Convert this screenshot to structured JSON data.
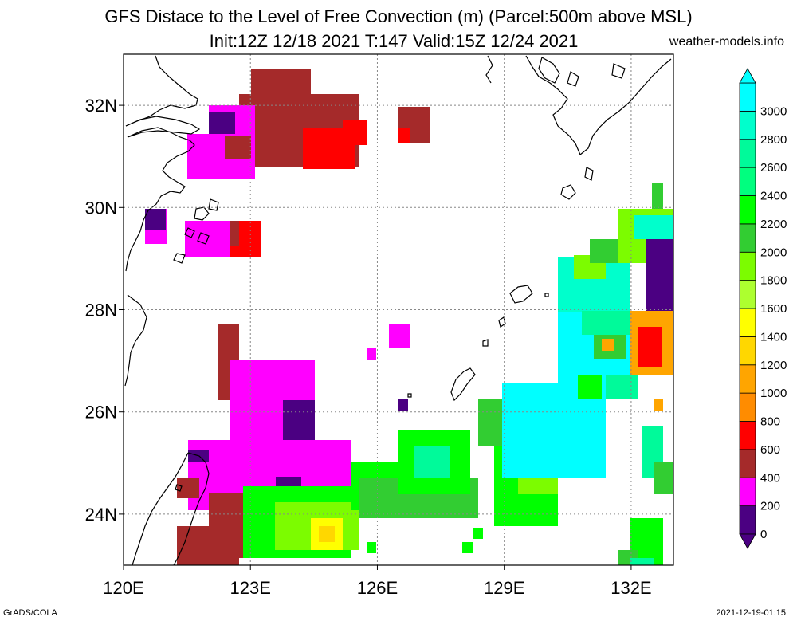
{
  "title": {
    "line1": "GFS Distace to the Level of Free Convection (m) (Parcel:500m above MSL)",
    "line2": "Init:12Z 12/18 2021 T:147 Valid:15Z 12/24 2021",
    "site": "weather-models.info"
  },
  "footer": {
    "left": "GrADS/COLA",
    "right": "2021-12-19-01:15"
  },
  "map": {
    "lon_range": [
      120,
      133
    ],
    "lat_range": [
      23,
      33
    ],
    "lon_ticks": [
      {
        "value": 120,
        "label": "120E"
      },
      {
        "value": 123,
        "label": "123E"
      },
      {
        "value": 126,
        "label": "126E"
      },
      {
        "value": 129,
        "label": "129E"
      },
      {
        "value": 132,
        "label": "132E"
      }
    ],
    "lat_ticks": [
      {
        "value": 24,
        "label": "24N"
      },
      {
        "value": 26,
        "label": "26N"
      },
      {
        "value": 28,
        "label": "28N"
      },
      {
        "value": 30,
        "label": "30N"
      },
      {
        "value": 32,
        "label": "32N"
      }
    ],
    "grid": true
  },
  "legend": {
    "bins": [
      {
        "label": "0",
        "color": "#4b0082"
      },
      {
        "label": "200",
        "color": "#ff00ff"
      },
      {
        "label": "400",
        "color": "#a52a2a"
      },
      {
        "label": "600",
        "color": "#ff0000"
      },
      {
        "label": "800",
        "color": "#ff8c00"
      },
      {
        "label": "1000",
        "color": "#ffa500"
      },
      {
        "label": "1200",
        "color": "#ffd700"
      },
      {
        "label": "1400",
        "color": "#ffff00"
      },
      {
        "label": "1600",
        "color": "#adff2f"
      },
      {
        "label": "1800",
        "color": "#7cfc00"
      },
      {
        "label": "2000",
        "color": "#32cd32"
      },
      {
        "label": "2200",
        "color": "#00ff00"
      },
      {
        "label": "2400",
        "color": "#00ff7f"
      },
      {
        "label": "2600",
        "color": "#00fa9a"
      },
      {
        "label": "2800",
        "color": "#00ffcc"
      },
      {
        "label": "3000",
        "color": "#00ffff"
      }
    ]
  }
}
